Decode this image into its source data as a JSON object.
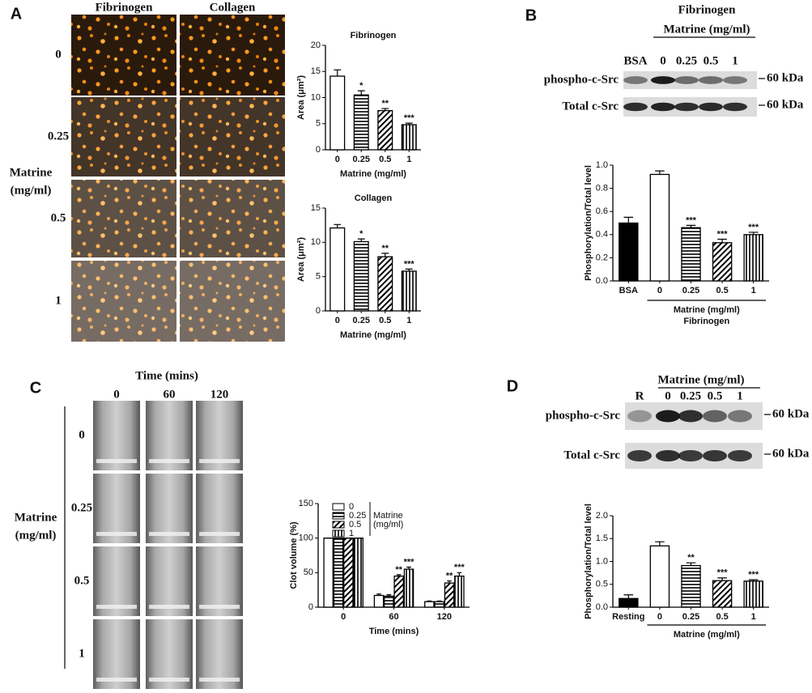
{
  "panel_labels": [
    "A",
    "B",
    "C",
    "D"
  ],
  "panel_a_images": {
    "columns": [
      "Fibrinogen",
      "Collagen"
    ],
    "rows": [
      "0",
      "0.25",
      "0.5",
      "1"
    ],
    "row_title": [
      "Matrine",
      "(mg/ml)"
    ]
  },
  "panel_b_blot": {
    "title": "Fibrinogen",
    "subtitle": "Matrine (mg/ml)",
    "lanes": [
      "BSA",
      "0",
      "0.25",
      "0.5",
      "1"
    ],
    "rows": [
      "phospho-c-Src",
      "Total c-Src"
    ],
    "markers": [
      "60 kDa",
      "60 kDa"
    ]
  },
  "panel_c_images": {
    "title": "Time (mins)",
    "columns": [
      "0",
      "60",
      "120"
    ],
    "rows": [
      "0",
      "0.25",
      "0.5",
      "1"
    ],
    "row_title": [
      "Matrine",
      "(mg/ml)"
    ]
  },
  "panel_d_blot": {
    "subtitle": "Matrine (mg/ml)",
    "lanes": [
      "R",
      "0",
      "0.25",
      "0.5",
      "1"
    ],
    "rows": [
      "phospho-c-Src",
      "Total c-Src"
    ],
    "markers": [
      "60 kDa",
      "60 kDa"
    ]
  },
  "chart_data": [
    {
      "type": "bar",
      "title": "Fibrinogen",
      "xlabel": "Matrine (mg/ml)",
      "ylabel": "Area (μm²)",
      "categories": [
        "0",
        "0.25",
        "0.5",
        "1"
      ],
      "values": [
        14.1,
        10.5,
        7.5,
        4.8
      ],
      "errors": [
        1.2,
        0.8,
        0.4,
        0.3
      ],
      "significance": [
        null,
        "*",
        "**",
        "***"
      ],
      "colors": [
        "#ffffff",
        "#ffffff",
        "#ffffff",
        "#ffffff"
      ],
      "patterns": [
        "solid",
        "horizontal",
        "diagonal",
        "vertical"
      ],
      "ylim": [
        0,
        20
      ],
      "yticks": [
        0,
        5,
        10,
        15,
        20
      ]
    },
    {
      "type": "bar",
      "title": "Collagen",
      "xlabel": "Matrine (mg/ml)",
      "ylabel": "Area (μm²)",
      "categories": [
        "0",
        "0.25",
        "0.5",
        "1"
      ],
      "values": [
        12.1,
        10.1,
        7.9,
        5.8
      ],
      "errors": [
        0.5,
        0.4,
        0.5,
        0.3
      ],
      "significance": [
        null,
        "*",
        "**",
        "***"
      ],
      "colors": [
        "#ffffff",
        "#ffffff",
        "#ffffff",
        "#ffffff"
      ],
      "patterns": [
        "solid",
        "horizontal",
        "diagonal",
        "vertical"
      ],
      "ylim": [
        0,
        15
      ],
      "yticks": [
        0,
        5,
        10,
        15
      ]
    },
    {
      "type": "bar",
      "xlabel": "Matrine (mg/ml)",
      "xlabel2": "Fibrinogen",
      "ylabel": "Phosphorylation/Total level",
      "categories": [
        "BSA",
        "0",
        "0.25",
        "0.5",
        "1"
      ],
      "values": [
        0.5,
        0.92,
        0.46,
        0.33,
        0.4
      ],
      "errors": [
        0.05,
        0.03,
        0.02,
        0.03,
        0.02
      ],
      "significance": [
        null,
        null,
        "***",
        "***",
        "***"
      ],
      "colors": [
        "#000000",
        "#ffffff",
        "#ffffff",
        "#ffffff",
        "#ffffff"
      ],
      "patterns": [
        "solid",
        "solid",
        "horizontal",
        "diagonal",
        "vertical"
      ],
      "ylim": [
        0,
        1
      ],
      "yticks": [
        {
          "value": 0,
          "label": "0.0"
        },
        0.2,
        0.4,
        0.6,
        0.8,
        {
          "value": 1,
          "label": "1.0"
        }
      ]
    },
    {
      "type": "bar",
      "xlabel": "Time (mins)",
      "ylabel": "Clot volume (%)",
      "legend_title": [
        "Matrine",
        "(mg/ml)"
      ],
      "categories": [
        "0",
        "60",
        "120"
      ],
      "series": [
        {
          "name": "0",
          "color": "#ffffff",
          "pattern": "solid",
          "values": [
            100,
            17,
            8
          ],
          "errors": [
            0,
            2,
            1
          ],
          "significance": [
            null,
            null,
            null
          ]
        },
        {
          "name": "0.25",
          "color": "#ffffff",
          "pattern": "horizontal",
          "values": [
            100,
            16,
            8
          ],
          "errors": [
            0,
            2,
            1
          ],
          "significance": [
            null,
            null,
            null
          ]
        },
        {
          "name": "0.5",
          "color": "#ffffff",
          "pattern": "diagonal",
          "values": [
            100,
            45,
            35
          ],
          "errors": [
            0,
            2,
            3
          ],
          "significance": [
            null,
            "**",
            "**"
          ]
        },
        {
          "name": "1",
          "color": "#ffffff",
          "pattern": "vertical",
          "values": [
            100,
            55,
            45
          ],
          "errors": [
            0,
            3,
            5
          ],
          "significance": [
            null,
            "***",
            "***"
          ]
        }
      ],
      "ylim": [
        0,
        150
      ],
      "yticks": [
        0,
        50,
        100,
        150
      ]
    },
    {
      "type": "bar",
      "xlabel": "Matrine (mg/ml)",
      "ylabel": "Phosphorylation/Total level",
      "categories": [
        "Resting",
        "0",
        "0.25",
        "0.5",
        "1"
      ],
      "values": [
        0.19,
        1.34,
        0.91,
        0.58,
        0.57
      ],
      "errors": [
        0.08,
        0.09,
        0.06,
        0.06,
        0.03
      ],
      "significance": [
        null,
        null,
        "**",
        "***",
        "***"
      ],
      "colors": [
        "#000000",
        "#ffffff",
        "#ffffff",
        "#ffffff",
        "#ffffff"
      ],
      "patterns": [
        "solid",
        "solid",
        "horizontal",
        "diagonal",
        "vertical"
      ],
      "ylim": [
        0,
        2
      ],
      "yticks": [
        {
          "value": 0,
          "label": "0.0"
        },
        0.5,
        {
          "value": 1,
          "label": "1.0"
        },
        1.5,
        {
          "value": 2,
          "label": "2.0"
        }
      ]
    }
  ]
}
